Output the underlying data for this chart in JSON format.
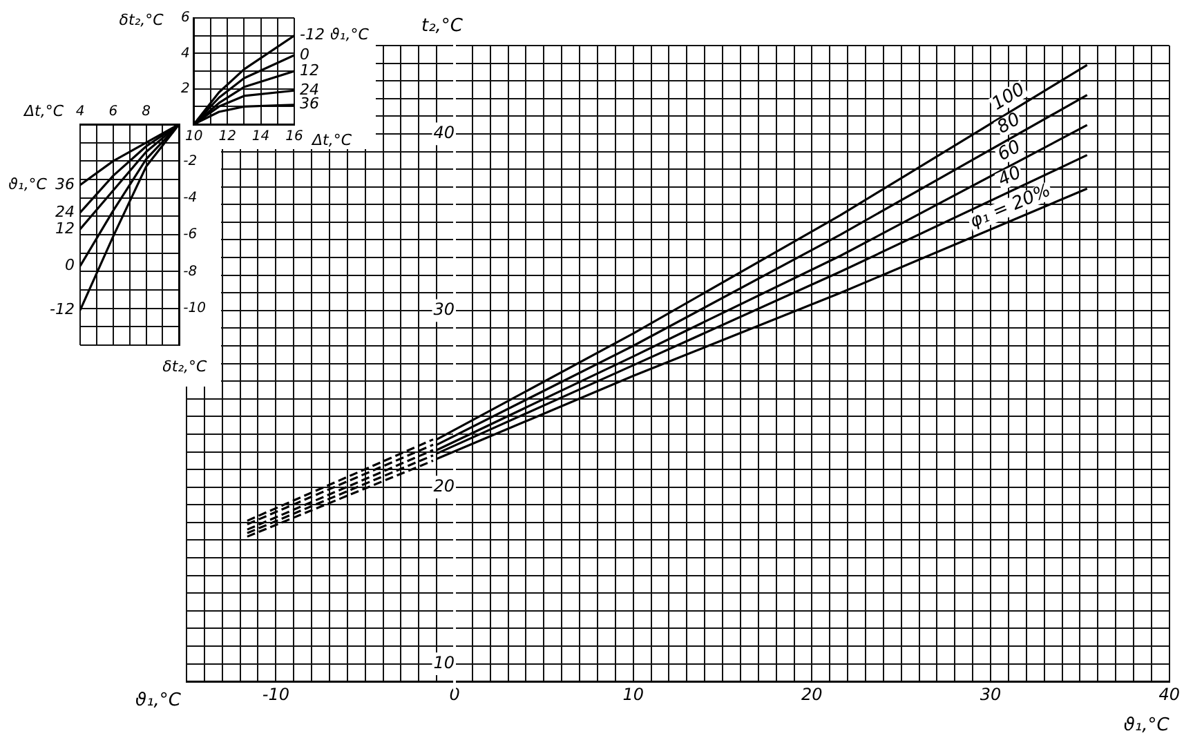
{
  "chart_data": [
    {
      "type": "line",
      "xlabel": "ϑ₁,°C",
      "ylabel": "t₂,°C",
      "annotations": [
        "ϑ₁,°C"
      ],
      "xlim": [
        -15,
        40
      ],
      "ylim": [
        9,
        45
      ],
      "grid": true,
      "marker": "none",
      "xticks": [
        {
          "value": -15,
          "label": null
        },
        {
          "value": -14,
          "label": null
        },
        {
          "value": -13,
          "label": null
        },
        {
          "value": -12,
          "label": null
        },
        {
          "value": -11,
          "label": null
        },
        -10,
        {
          "value": -9,
          "label": null
        },
        {
          "value": -8,
          "label": null
        },
        {
          "value": -7,
          "label": null
        },
        {
          "value": -6,
          "label": null
        },
        {
          "value": -5,
          "label": null
        },
        {
          "value": -4,
          "label": null
        },
        {
          "value": -3,
          "label": null
        },
        {
          "value": -2,
          "label": null
        },
        {
          "value": -1,
          "label": null
        },
        0,
        {
          "value": 1,
          "label": null
        },
        {
          "value": 2,
          "label": null
        },
        {
          "value": 3,
          "label": null
        },
        {
          "value": 4,
          "label": null
        },
        {
          "value": 5,
          "label": null
        },
        {
          "value": 6,
          "label": null
        },
        {
          "value": 7,
          "label": null
        },
        {
          "value": 8,
          "label": null
        },
        {
          "value": 9,
          "label": null
        },
        10,
        {
          "value": 11,
          "label": null
        },
        {
          "value": 12,
          "label": null
        },
        {
          "value": 13,
          "label": null
        },
        {
          "value": 14,
          "label": null
        },
        {
          "value": 15,
          "label": null
        },
        {
          "value": 16,
          "label": null
        },
        {
          "value": 17,
          "label": null
        },
        {
          "value": 18,
          "label": null
        },
        {
          "value": 19,
          "label": null
        },
        20,
        {
          "value": 21,
          "label": null
        },
        {
          "value": 22,
          "label": null
        },
        {
          "value": 23,
          "label": null
        },
        {
          "value": 24,
          "label": null
        },
        {
          "value": 25,
          "label": null
        },
        {
          "value": 26,
          "label": null
        },
        {
          "value": 27,
          "label": null
        },
        {
          "value": 28,
          "label": null
        },
        {
          "value": 29,
          "label": null
        },
        30,
        {
          "value": 31,
          "label": null
        },
        {
          "value": 32,
          "label": null
        },
        {
          "value": 33,
          "label": null
        },
        {
          "value": 34,
          "label": null
        },
        {
          "value": 35,
          "label": null
        },
        {
          "value": 36,
          "label": null
        },
        {
          "value": 37,
          "label": null
        },
        {
          "value": 38,
          "label": null
        },
        {
          "value": 39,
          "label": null
        },
        40
      ],
      "yticks": [
        {
          "value": 9,
          "label": null
        },
        10,
        {
          "value": 11,
          "label": null
        },
        {
          "value": 12,
          "label": null
        },
        {
          "value": 13,
          "label": null
        },
        {
          "value": 14,
          "label": null
        },
        {
          "value": 15,
          "label": null
        },
        {
          "value": 16,
          "label": null
        },
        {
          "value": 17,
          "label": null
        },
        {
          "value": 18,
          "label": null
        },
        {
          "value": 19,
          "label": null
        },
        20,
        {
          "value": 21,
          "label": null
        },
        {
          "value": 22,
          "label": null
        },
        {
          "value": 23,
          "label": null
        },
        {
          "value": 24,
          "label": null
        },
        {
          "value": 25,
          "label": null
        },
        {
          "value": 26,
          "label": null
        },
        {
          "value": 27,
          "label": null
        },
        {
          "value": 28,
          "label": null
        },
        {
          "value": 29,
          "label": null
        },
        30,
        {
          "value": 31,
          "label": null
        },
        {
          "value": 32,
          "label": null
        },
        {
          "value": 33,
          "label": null
        },
        {
          "value": 34,
          "label": null
        },
        {
          "value": 35,
          "label": null
        },
        {
          "value": 36,
          "label": null
        },
        {
          "value": 37,
          "label": null
        },
        {
          "value": 38,
          "label": null
        },
        {
          "value": 39,
          "label": null
        },
        40,
        {
          "value": 41,
          "label": null
        },
        {
          "value": 42,
          "label": null
        },
        {
          "value": 43,
          "label": null
        },
        {
          "value": 44,
          "label": null
        },
        {
          "value": 45,
          "label": null
        }
      ],
      "series": [
        {
          "name": "100",
          "color": "#000000",
          "line_style": "solid",
          "x": [
            -1,
            10,
            21.6,
            35.4
          ],
          "values": [
            22.7,
            28.7,
            35.4,
            43.9
          ]
        },
        {
          "name": "80",
          "color": "#000000",
          "line_style": "solid",
          "x": [
            -1,
            10,
            21.6,
            35.4
          ],
          "values": [
            22.4,
            28.0,
            34.3,
            42.2
          ]
        },
        {
          "name": "60",
          "color": "#000000",
          "line_style": "solid",
          "x": [
            -1,
            10,
            21.6,
            35.4
          ],
          "values": [
            22.1,
            27.4,
            33.1,
            40.5
          ]
        },
        {
          "name": "40",
          "color": "#000000",
          "line_style": "solid",
          "x": [
            -1,
            10,
            21.6,
            35.4
          ],
          "values": [
            21.9,
            26.9,
            32.2,
            38.8
          ]
        },
        {
          "name": "φ₁ = 20%",
          "color": "#000000",
          "line_style": "solid",
          "x": [
            -1,
            10,
            21.6,
            35.4
          ],
          "values": [
            21.6,
            26.3,
            31.0,
            36.9
          ]
        },
        {
          "color": "#000000",
          "line_style": "dashed",
          "x": [
            -11.6,
            -1.2
          ],
          "values": [
            18.1,
            22.7
          ]
        },
        {
          "color": "#000000",
          "line_style": "dashed",
          "x": [
            -11.6,
            -1.2
          ],
          "values": [
            17.9,
            22.4
          ]
        },
        {
          "color": "#000000",
          "line_style": "dashed",
          "x": [
            -11.6,
            -1.2
          ],
          "values": [
            17.6,
            22.1
          ]
        },
        {
          "color": "#000000",
          "line_style": "dashed",
          "x": [
            -11.6,
            -1.2
          ],
          "values": [
            17.4,
            21.8
          ]
        },
        {
          "color": "#000000",
          "line_style": "dashed",
          "x": [
            -11.6,
            -1.2
          ],
          "values": [
            17.2,
            21.5
          ]
        }
      ]
    },
    {
      "type": "line",
      "xlabel": "Δt,°C",
      "ylabel": "δt₂,°C",
      "legend_title": "ϑ₁,°C",
      "xlim": [
        10,
        16
      ],
      "ylim": [
        0,
        6
      ],
      "grid": true,
      "marker": "none",
      "xticks": [
        10,
        {
          "value": 11,
          "label": null
        },
        12,
        {
          "value": 13,
          "label": null
        },
        14,
        {
          "value": 15,
          "label": null
        },
        16
      ],
      "yticks": [
        {
          "value": 0,
          "label": null
        },
        {
          "value": 1,
          "label": null
        },
        2,
        {
          "value": 3,
          "label": null
        },
        4,
        {
          "value": 5,
          "label": null
        },
        6
      ],
      "series": [
        {
          "name": "-12",
          "color": "#000000",
          "x": [
            10,
            11.5,
            13,
            16
          ],
          "values": [
            0,
            1.8,
            3.1,
            5.0
          ]
        },
        {
          "name": "0",
          "color": "#000000",
          "x": [
            10,
            11.5,
            13,
            16
          ],
          "values": [
            0,
            1.5,
            2.6,
            3.9
          ]
        },
        {
          "name": "12",
          "color": "#000000",
          "x": [
            10,
            11.5,
            13,
            16
          ],
          "values": [
            0,
            1.2,
            2.1,
            3.0
          ]
        },
        {
          "name": "24",
          "color": "#000000",
          "x": [
            10,
            11.5,
            13,
            16
          ],
          "values": [
            0,
            1.0,
            1.6,
            1.9
          ]
        },
        {
          "name": "36",
          "color": "#000000",
          "x": [
            10,
            11.5,
            13,
            16
          ],
          "values": [
            0,
            0.7,
            1.0,
            1.1
          ]
        }
      ]
    },
    {
      "type": "line",
      "xlabel": "Δt,°C",
      "ylabel": "δt₂,°C",
      "legend_title": "ϑ₁,°C",
      "xlim": [
        4,
        10
      ],
      "ylim": [
        -12,
        0
      ],
      "grid": true,
      "marker": "none",
      "xticks": [
        4,
        {
          "value": 5,
          "label": null
        },
        6,
        {
          "value": 7,
          "label": null
        },
        8,
        {
          "value": 9,
          "label": null
        },
        {
          "value": 10,
          "label": null
        }
      ],
      "yticks": [
        {
          "value": -12,
          "label": null
        },
        {
          "value": -11,
          "label": null
        },
        -10,
        {
          "value": -9,
          "label": null
        },
        -8,
        {
          "value": -7,
          "label": null
        },
        -6,
        {
          "value": -5,
          "label": null
        },
        -4,
        {
          "value": -3,
          "label": null
        },
        -2,
        {
          "value": -1,
          "label": null
        },
        {
          "value": 0,
          "label": null
        }
      ],
      "series": [
        {
          "name": "36",
          "color": "#000000",
          "x": [
            4,
            6,
            8,
            10
          ],
          "values": [
            -3.3,
            -2.0,
            -1.0,
            0
          ]
        },
        {
          "name": "24",
          "color": "#000000",
          "x": [
            4,
            6,
            8,
            10
          ],
          "values": [
            -4.8,
            -2.8,
            -1.2,
            0
          ]
        },
        {
          "name": "12",
          "color": "#000000",
          "x": [
            4,
            6,
            8,
            10
          ],
          "values": [
            -5.7,
            -3.6,
            -1.5,
            0
          ]
        },
        {
          "name": "0",
          "color": "#000000",
          "x": [
            4,
            6,
            8,
            10
          ],
          "values": [
            -7.7,
            -4.7,
            -1.9,
            0
          ]
        },
        {
          "name": "-12",
          "color": "#000000",
          "x": [
            4,
            6,
            8,
            10
          ],
          "values": [
            -10.1,
            -6.1,
            -2.3,
            0
          ]
        }
      ]
    }
  ]
}
